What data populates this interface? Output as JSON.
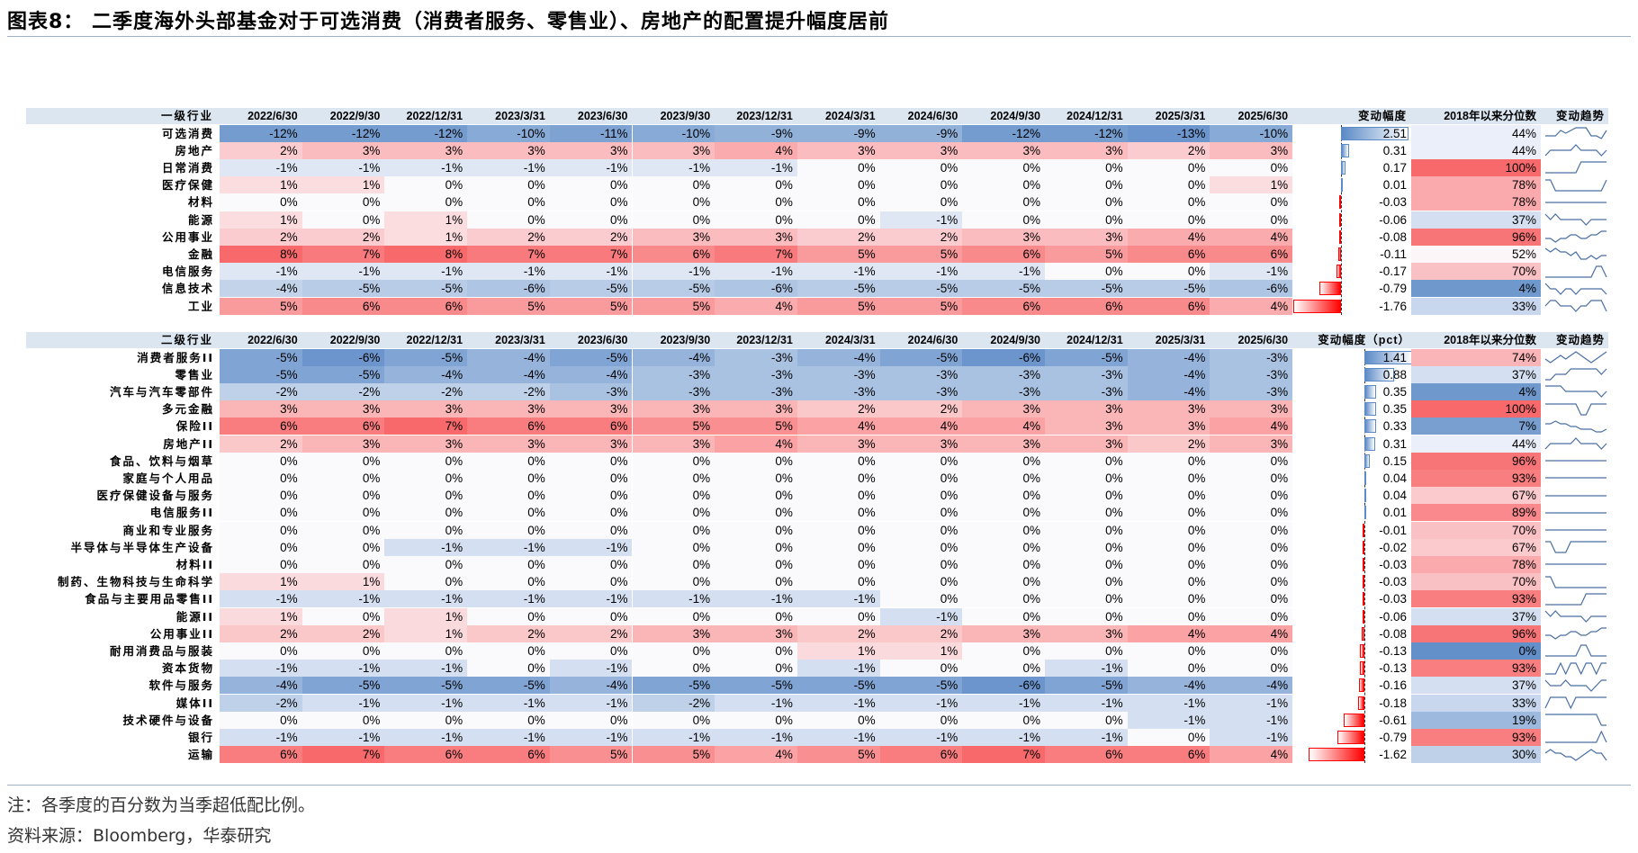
{
  "title": "图表8：  二季度海外头部基金对于可选消费（消费者服务、零售业）、房地产的配置提升幅度居前",
  "colors": {
    "negative": "#5b8ac6",
    "positive": "#f8696b",
    "header_band": "#dce6f1",
    "spark": "#4a6fa5"
  },
  "chart_data": [
    {
      "type": "table",
      "header": {
        "label": "一级行业",
        "change": "变动幅度",
        "percentile": "2018年以来分位数",
        "trend": "变动趋势"
      },
      "dates": [
        "2022/6/30",
        "2022/9/30",
        "2022/12/31",
        "2023/3/31",
        "2023/6/30",
        "2023/9/30",
        "2023/12/31",
        "2024/3/31",
        "2024/6/30",
        "2024/9/30",
        "2024/12/31",
        "2025/3/31",
        "2025/6/30"
      ],
      "rows": [
        {
          "label": "可选消费",
          "values": [
            "-12%",
            "-12%",
            "-12%",
            "-10%",
            "-11%",
            "-10%",
            "-9%",
            "-9%",
            "-9%",
            "-12%",
            "-12%",
            "-13%",
            "-10%"
          ],
          "change": "2.51",
          "percentile": "44%"
        },
        {
          "label": "房地产",
          "values": [
            "2%",
            "3%",
            "3%",
            "3%",
            "3%",
            "3%",
            "4%",
            "3%",
            "3%",
            "3%",
            "3%",
            "2%",
            "3%"
          ],
          "change": "0.31",
          "percentile": "44%"
        },
        {
          "label": "日常消费",
          "values": [
            "-1%",
            "-1%",
            "-1%",
            "-1%",
            "-1%",
            "-1%",
            "-1%",
            "0%",
            "0%",
            "0%",
            "0%",
            "0%",
            "0%"
          ],
          "change": "0.17",
          "percentile": "100%"
        },
        {
          "label": "医疗保健",
          "values": [
            "1%",
            "1%",
            "0%",
            "0%",
            "0%",
            "0%",
            "0%",
            "0%",
            "0%",
            "0%",
            "0%",
            "0%",
            "1%"
          ],
          "change": "0.01",
          "percentile": "78%"
        },
        {
          "label": "材料",
          "values": [
            "0%",
            "0%",
            "0%",
            "0%",
            "0%",
            "0%",
            "0%",
            "0%",
            "0%",
            "0%",
            "0%",
            "0%",
            "0%"
          ],
          "change": "-0.03",
          "percentile": "78%"
        },
        {
          "label": "能源",
          "values": [
            "1%",
            "0%",
            "1%",
            "0%",
            "0%",
            "0%",
            "0%",
            "0%",
            "-1%",
            "0%",
            "0%",
            "0%",
            "0%"
          ],
          "change": "-0.06",
          "percentile": "37%"
        },
        {
          "label": "公用事业",
          "values": [
            "2%",
            "2%",
            "1%",
            "2%",
            "2%",
            "3%",
            "3%",
            "2%",
            "2%",
            "3%",
            "3%",
            "4%",
            "4%"
          ],
          "change": "-0.08",
          "percentile": "96%"
        },
        {
          "label": "金融",
          "values": [
            "8%",
            "7%",
            "8%",
            "7%",
            "7%",
            "6%",
            "7%",
            "5%",
            "5%",
            "6%",
            "5%",
            "6%",
            "6%"
          ],
          "change": "-0.11",
          "percentile": "52%"
        },
        {
          "label": "电信服务",
          "values": [
            "-1%",
            "-1%",
            "-1%",
            "-1%",
            "-1%",
            "-1%",
            "-1%",
            "-1%",
            "-1%",
            "-1%",
            "0%",
            "0%",
            "-1%"
          ],
          "change": "-0.17",
          "percentile": "70%"
        },
        {
          "label": "信息技术",
          "values": [
            "-4%",
            "-5%",
            "-5%",
            "-6%",
            "-5%",
            "-5%",
            "-6%",
            "-5%",
            "-5%",
            "-5%",
            "-5%",
            "-5%",
            "-6%"
          ],
          "change": "-0.79",
          "percentile": "4%"
        },
        {
          "label": "工业",
          "values": [
            "5%",
            "6%",
            "6%",
            "5%",
            "5%",
            "5%",
            "4%",
            "5%",
            "5%",
            "6%",
            "6%",
            "6%",
            "4%"
          ],
          "change": "-1.76",
          "percentile": "33%"
        }
      ]
    },
    {
      "type": "table",
      "header": {
        "label": "二级行业",
        "change": "变动幅度（pct）",
        "percentile": "2018年以来分位数",
        "trend": "变动趋势"
      },
      "dates": [
        "2022/6/30",
        "2022/9/30",
        "2022/12/31",
        "2023/3/31",
        "2023/6/30",
        "2023/9/30",
        "2023/12/31",
        "2024/3/31",
        "2024/6/30",
        "2024/9/30",
        "2024/12/31",
        "2025/3/31",
        "2025/6/30"
      ],
      "rows": [
        {
          "label": "消费者服务II",
          "values": [
            "-5%",
            "-6%",
            "-5%",
            "-4%",
            "-5%",
            "-4%",
            "-3%",
            "-4%",
            "-5%",
            "-6%",
            "-5%",
            "-4%",
            "-3%"
          ],
          "change": "1.41",
          "percentile": "74%"
        },
        {
          "label": "零售业",
          "values": [
            "-5%",
            "-5%",
            "-4%",
            "-4%",
            "-4%",
            "-3%",
            "-3%",
            "-3%",
            "-3%",
            "-3%",
            "-3%",
            "-4%",
            "-3%"
          ],
          "change": "0.88",
          "percentile": "37%"
        },
        {
          "label": "汽车与汽车零部件",
          "values": [
            "-2%",
            "-2%",
            "-2%",
            "-2%",
            "-3%",
            "-3%",
            "-3%",
            "-3%",
            "-3%",
            "-3%",
            "-3%",
            "-4%",
            "-3%"
          ],
          "change": "0.35",
          "percentile": "4%"
        },
        {
          "label": "多元金融",
          "values": [
            "3%",
            "3%",
            "3%",
            "3%",
            "3%",
            "3%",
            "3%",
            "2%",
            "2%",
            "3%",
            "3%",
            "3%",
            "3%"
          ],
          "change": "0.35",
          "percentile": "100%"
        },
        {
          "label": "保险II",
          "values": [
            "6%",
            "6%",
            "7%",
            "6%",
            "6%",
            "5%",
            "5%",
            "4%",
            "4%",
            "4%",
            "3%",
            "3%",
            "4%"
          ],
          "change": "0.33",
          "percentile": "7%"
        },
        {
          "label": "房地产II",
          "values": [
            "2%",
            "3%",
            "3%",
            "3%",
            "3%",
            "3%",
            "4%",
            "3%",
            "3%",
            "3%",
            "3%",
            "2%",
            "3%"
          ],
          "change": "0.31",
          "percentile": "44%"
        },
        {
          "label": "食品、饮料与烟草",
          "values": [
            "0%",
            "0%",
            "0%",
            "0%",
            "0%",
            "0%",
            "0%",
            "0%",
            "0%",
            "0%",
            "0%",
            "0%",
            "0%"
          ],
          "change": "0.15",
          "percentile": "96%"
        },
        {
          "label": "家庭与个人用品",
          "values": [
            "0%",
            "0%",
            "0%",
            "0%",
            "0%",
            "0%",
            "0%",
            "0%",
            "0%",
            "0%",
            "0%",
            "0%",
            "0%"
          ],
          "change": "0.04",
          "percentile": "93%"
        },
        {
          "label": "医疗保健设备与服务",
          "values": [
            "0%",
            "0%",
            "0%",
            "0%",
            "0%",
            "0%",
            "0%",
            "0%",
            "0%",
            "0%",
            "0%",
            "0%",
            "0%"
          ],
          "change": "0.04",
          "percentile": "67%"
        },
        {
          "label": "电信服务II",
          "values": [
            "0%",
            "0%",
            "0%",
            "0%",
            "0%",
            "0%",
            "0%",
            "0%",
            "0%",
            "0%",
            "0%",
            "0%",
            "0%"
          ],
          "change": "0.01",
          "percentile": "89%"
        },
        {
          "label": "商业和专业服务",
          "values": [
            "0%",
            "0%",
            "0%",
            "0%",
            "0%",
            "0%",
            "0%",
            "0%",
            "0%",
            "0%",
            "0%",
            "0%",
            "0%"
          ],
          "change": "-0.01",
          "percentile": "70%"
        },
        {
          "label": "半导体与半导体生产设备",
          "values": [
            "0%",
            "0%",
            "-1%",
            "-1%",
            "-1%",
            "0%",
            "0%",
            "0%",
            "0%",
            "0%",
            "0%",
            "0%",
            "0%"
          ],
          "change": "-0.02",
          "percentile": "67%"
        },
        {
          "label": "材料II",
          "values": [
            "0%",
            "0%",
            "0%",
            "0%",
            "0%",
            "0%",
            "0%",
            "0%",
            "0%",
            "0%",
            "0%",
            "0%",
            "0%"
          ],
          "change": "-0.03",
          "percentile": "78%"
        },
        {
          "label": "制药、生物科技与生命科学",
          "values": [
            "1%",
            "1%",
            "0%",
            "0%",
            "0%",
            "0%",
            "0%",
            "0%",
            "0%",
            "0%",
            "0%",
            "0%",
            "0%"
          ],
          "change": "-0.03",
          "percentile": "70%"
        },
        {
          "label": "食品与主要用品零售II",
          "values": [
            "-1%",
            "-1%",
            "-1%",
            "-1%",
            "-1%",
            "-1%",
            "-1%",
            "-1%",
            "0%",
            "0%",
            "0%",
            "0%",
            "0%"
          ],
          "change": "-0.03",
          "percentile": "93%"
        },
        {
          "label": "能源II",
          "values": [
            "1%",
            "0%",
            "1%",
            "0%",
            "0%",
            "0%",
            "0%",
            "0%",
            "-1%",
            "0%",
            "0%",
            "0%",
            "0%"
          ],
          "change": "-0.06",
          "percentile": "37%"
        },
        {
          "label": "公用事业II",
          "values": [
            "2%",
            "2%",
            "1%",
            "2%",
            "2%",
            "3%",
            "3%",
            "2%",
            "2%",
            "3%",
            "3%",
            "4%",
            "4%"
          ],
          "change": "-0.08",
          "percentile": "96%"
        },
        {
          "label": "耐用消费品与服装",
          "values": [
            "0%",
            "0%",
            "0%",
            "0%",
            "0%",
            "0%",
            "0%",
            "1%",
            "1%",
            "0%",
            "0%",
            "0%",
            "0%"
          ],
          "change": "-0.13",
          "percentile": "0%"
        },
        {
          "label": "资本货物",
          "values": [
            "-1%",
            "-1%",
            "-1%",
            "0%",
            "-1%",
            "0%",
            "0%",
            "-1%",
            "0%",
            "0%",
            "-1%",
            "0%",
            "0%"
          ],
          "change": "-0.13",
          "percentile": "93%"
        },
        {
          "label": "软件与服务",
          "values": [
            "-4%",
            "-5%",
            "-5%",
            "-5%",
            "-4%",
            "-5%",
            "-5%",
            "-5%",
            "-5%",
            "-6%",
            "-5%",
            "-4%",
            "-4%"
          ],
          "change": "-0.16",
          "percentile": "37%"
        },
        {
          "label": "媒体II",
          "values": [
            "-2%",
            "-1%",
            "-1%",
            "-1%",
            "-1%",
            "-2%",
            "-1%",
            "-1%",
            "-1%",
            "-1%",
            "-1%",
            "-1%",
            "-1%"
          ],
          "change": "-0.18",
          "percentile": "33%"
        },
        {
          "label": "技术硬件与设备",
          "values": [
            "0%",
            "0%",
            "0%",
            "0%",
            "0%",
            "0%",
            "0%",
            "0%",
            "0%",
            "0%",
            "0%",
            "-1%",
            "-1%"
          ],
          "change": "-0.61",
          "percentile": "19%"
        },
        {
          "label": "银行",
          "values": [
            "-1%",
            "-1%",
            "-1%",
            "-1%",
            "-1%",
            "-1%",
            "-1%",
            "-1%",
            "-1%",
            "-1%",
            "-1%",
            "0%",
            "-1%"
          ],
          "change": "-0.79",
          "percentile": "93%"
        },
        {
          "label": "运输",
          "values": [
            "6%",
            "7%",
            "6%",
            "6%",
            "5%",
            "5%",
            "4%",
            "5%",
            "6%",
            "7%",
            "6%",
            "6%",
            "4%"
          ],
          "change": "-1.62",
          "percentile": "30%"
        }
      ]
    }
  ],
  "notes": {
    "note": "注：各季度的百分数为当季超低配比例。",
    "source": "资料来源：Bloomberg，华泰研究"
  }
}
